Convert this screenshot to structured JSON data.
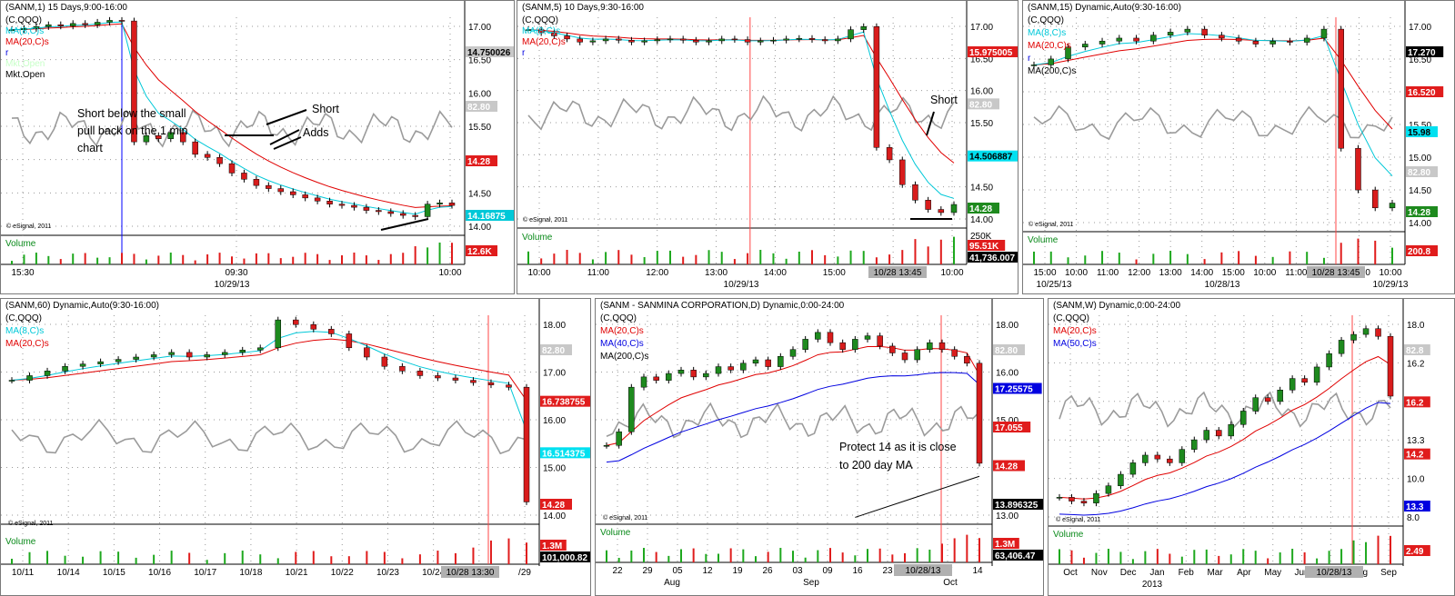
{
  "colors": {
    "ma8": "#00c8d8",
    "ma20": "#e00000",
    "ma40": "#0000e0",
    "ma50": "#0000e0",
    "ma200": "#000000",
    "qqq": "#9b9b9b",
    "up": "#1e8a1e",
    "down": "#d81c1c",
    "vol_up": "#1ea81e",
    "vol_down": "#e01c1c",
    "grid": "#999999",
    "vline": "#ff4444"
  },
  "copyright": "© eSignal, 2011",
  "panels": [
    {
      "id": "p1",
      "title": "(SANM,1) 15 Days,9:00-16:00",
      "legend": [
        {
          "text": "(C,QQQ)",
          "color": "#000000"
        },
        {
          "text": "MA(8,C)s",
          "color": "#00c8d8"
        },
        {
          "text": "MA(20,C)s",
          "color": "#e00000"
        },
        {
          "text": "r",
          "color": "#0000e0"
        },
        {
          "text": "Mkt.Open",
          "color": "#c8ffc8"
        },
        {
          "text": "Mkt.Open",
          "color": "#000000"
        }
      ],
      "y_ticks": [
        "17.00",
        "16.50",
        "16.00",
        "15.50",
        "15.00",
        "14.50",
        "14.00"
      ],
      "x_ticks": [
        "15:30",
        "09:30",
        "10:00"
      ],
      "x_date": "10/29/13",
      "price_tags": [
        {
          "text": "14.750026",
          "bg": "#c8c8c8",
          "fg": "#000000"
        },
        {
          "text": "82.80",
          "bg": "#c8c8c8",
          "fg": "#ffffff"
        },
        {
          "text": "14.28",
          "bg": "#e01c1c",
          "fg": "#ffffff"
        },
        {
          "text": "14.16875",
          "bg": "#00c8d8",
          "fg": "#ffffff"
        }
      ],
      "vol_label": "Volume",
      "vol_tag": "12.6K",
      "annotations": [
        "Short below the small",
        "pull back on the 1  min",
        "chart"
      ],
      "short_label": "Short",
      "adds_label": "Adds"
    },
    {
      "id": "p2",
      "title": "(SANM,5) 10 Days,9:30-16:00",
      "legend": [
        {
          "text": "(C,QQQ)",
          "color": "#000000"
        },
        {
          "text": "MA(8,C)s",
          "color": "#00c8d8"
        },
        {
          "text": "MA(20,C)s",
          "color": "#e00000"
        },
        {
          "text": "r",
          "color": "#0000e0"
        }
      ],
      "y_ticks": [
        "17.00",
        "16.50",
        "16.00",
        "15.50",
        "15.00",
        "14.50",
        "14.00"
      ],
      "x_ticks": [
        "10:00",
        "11:00",
        "12:00",
        "13:00",
        "14:00",
        "15:00",
        "09:00",
        "10:00"
      ],
      "x_marker": "10/28 13:45",
      "x_date": "10/29/13",
      "price_tags": [
        {
          "text": "15.975005",
          "bg": "#e01c1c",
          "fg": "#ffffff"
        },
        {
          "text": "82.80",
          "bg": "#c8c8c8",
          "fg": "#ffffff"
        },
        {
          "text": "14.506887",
          "bg": "#00e0f0",
          "fg": "#000000"
        },
        {
          "text": "14.28",
          "bg": "#1e8a1e",
          "fg": "#ffffff"
        }
      ],
      "vol_label": "Volume",
      "vol_ticks": [
        "250K"
      ],
      "vol_tags": [
        "95.51K",
        "41,736.007"
      ],
      "short_label": "Short"
    },
    {
      "id": "p3",
      "title": "(SANM,15) Dynamic,Auto(9:30-16:00)",
      "legend": [
        {
          "text": "(C,QQQ)",
          "color": "#000000"
        },
        {
          "text": "MA(8,C)s",
          "color": "#00c8d8"
        },
        {
          "text": "MA(20,C)s",
          "color": "#e00000"
        },
        {
          "text": "r",
          "color": "#0000e0"
        },
        {
          "text": "MA(200,C)s",
          "color": "#000000"
        }
      ],
      "y_ticks": [
        "17.00",
        "16.50",
        "16.00",
        "15.50",
        "15.00",
        "14.50",
        "14.00"
      ],
      "x_ticks": [
        "15:00",
        "10:00",
        "11:00",
        "12:00",
        "13:00",
        "14:00",
        "15:00",
        "10:00",
        "11:00",
        "12:00",
        "15:00",
        "10:00"
      ],
      "x_marker": "10/28 13:45",
      "x_dates": [
        "10/25/13",
        "10/28/13",
        "10/29/13"
      ],
      "price_tags": [
        {
          "text": "17.270",
          "bg": "#000000",
          "fg": "#ffffff"
        },
        {
          "text": "16.520",
          "bg": "#e01c1c",
          "fg": "#ffffff"
        },
        {
          "text": "15.98",
          "bg": "#00e0f0",
          "fg": "#000000"
        },
        {
          "text": "82.80",
          "bg": "#c8c8c8",
          "fg": "#ffffff"
        },
        {
          "text": "14.28",
          "bg": "#1e8a1e",
          "fg": "#ffffff"
        }
      ],
      "vol_label": "Volume",
      "vol_tag": "200.8"
    },
    {
      "id": "p4",
      "title": "(SANM,60) Dynamic,Auto(9:30-16:00)",
      "legend": [
        {
          "text": "(C,QQQ)",
          "color": "#000000"
        },
        {
          "text": "MA(8,C)s",
          "color": "#00c8d8"
        },
        {
          "text": "MA(20,C)s",
          "color": "#e00000"
        }
      ],
      "y_ticks": [
        "18.00",
        "17.00",
        "16.00",
        "15.00",
        "14.00"
      ],
      "x_ticks": [
        "10/11",
        "10/14",
        "10/15",
        "10/16",
        "10/17",
        "10/18",
        "10/21",
        "10/22",
        "10/23",
        "10/24",
        "10/25",
        "/29"
      ],
      "x_marker": "10/28 13:30",
      "price_tags": [
        {
          "text": "82.80",
          "bg": "#c8c8c8",
          "fg": "#ffffff"
        },
        {
          "text": "16.738755",
          "bg": "#e01c1c",
          "fg": "#ffffff"
        },
        {
          "text": "16.514375",
          "bg": "#00e0f0",
          "fg": "#ffffff"
        },
        {
          "text": "14.28",
          "bg": "#e01c1c",
          "fg": "#ffffff"
        }
      ],
      "vol_label": "Volume",
      "vol_tags": [
        "1.3M",
        "101,000.82"
      ]
    },
    {
      "id": "p5",
      "title": "(SANM - SANMINA CORPORATION,D) Dynamic,0:00-24:00",
      "legend": [
        {
          "text": "(C,QQQ)",
          "color": "#000000"
        },
        {
          "text": "MA(20,C)s",
          "color": "#e00000"
        },
        {
          "text": "MA(40,C)s",
          "color": "#0000e0"
        },
        {
          "text": "MA(200,C)s",
          "color": "#000000"
        }
      ],
      "y_ticks": [
        "18.00",
        "16.00",
        "15.00",
        "14.00",
        "13.00"
      ],
      "x_ticks": [
        "22",
        "29",
        "05",
        "12",
        "19",
        "26",
        "03",
        "09",
        "16",
        "23",
        "30",
        "07",
        "14"
      ],
      "x_months": [
        "Aug",
        "Sep",
        "Oct"
      ],
      "x_marker": "10/28/13",
      "price_tags": [
        {
          "text": "82.80",
          "bg": "#c8c8c8",
          "fg": "#ffffff"
        },
        {
          "text": "17.25575",
          "bg": "#0000e0",
          "fg": "#ffffff"
        },
        {
          "text": "17.055",
          "bg": "#e01c1c",
          "fg": "#ffffff"
        },
        {
          "text": "14.28",
          "bg": "#e01c1c",
          "fg": "#ffffff"
        },
        {
          "text": "13.896325",
          "bg": "#000000",
          "fg": "#ffffff"
        }
      ],
      "vol_label": "Volume",
      "vol_tags": [
        "1.3M",
        "63,406.47"
      ],
      "annotations": [
        "Protect 14 as it is close",
        "to 200 day MA"
      ]
    },
    {
      "id": "p6",
      "title": "(SANM,W) Dynamic,0:00-24:00",
      "legend": [
        {
          "text": "(C,QQQ)",
          "color": "#000000"
        },
        {
          "text": "MA(20,C)s",
          "color": "#e00000"
        },
        {
          "text": "MA(50,C)s",
          "color": "#0000e0"
        }
      ],
      "y_ticks": [
        "18.0",
        "16.2",
        "14.2",
        "13.3",
        "10.0",
        "8.0"
      ],
      "x_ticks": [
        "Oct",
        "Nov",
        "Dec",
        "Jan",
        "Feb",
        "Mar",
        "Apr",
        "May",
        "Jun",
        "Jul",
        "Aug",
        "Sep"
      ],
      "x_year": "2013",
      "x_marker": "10/28/13",
      "price_tags": [
        {
          "text": "82.8",
          "bg": "#c8c8c8",
          "fg": "#ffffff"
        },
        {
          "text": "16.2",
          "bg": "#e01c1c",
          "fg": "#ffffff"
        },
        {
          "text": "14.2",
          "bg": "#e01c1c",
          "fg": "#ffffff"
        },
        {
          "text": "13.3",
          "bg": "#0000e0",
          "fg": "#ffffff"
        }
      ],
      "vol_label": "Volume",
      "vol_tags": [
        "2.49"
      ]
    }
  ],
  "chart_data": [
    {
      "type": "candlestick",
      "panel": "p1",
      "title": "(SANM,1) 15 Days,9:00-16:00",
      "ylim": [
        13.8,
        17.3
      ],
      "close": [
        17.1,
        17.12,
        17.15,
        17.18,
        17.16,
        17.2,
        17.18,
        17.22,
        17.25,
        17.24,
        15.3,
        15.4,
        15.35,
        15.45,
        15.3,
        15.1,
        15.05,
        14.95,
        14.8,
        14.7,
        14.6,
        14.55,
        14.5,
        14.45,
        14.4,
        14.35,
        14.3,
        14.28,
        14.25,
        14.2,
        14.18,
        14.15,
        14.12,
        14.1,
        14.3,
        14.32,
        14.28
      ]
    },
    {
      "type": "candlestick",
      "panel": "p2",
      "title": "(SANM,5) 10 Days,9:30-16:00",
      "ylim": [
        13.9,
        17.3
      ],
      "close": [
        17.1,
        17.05,
        17.0,
        16.95,
        16.9,
        16.92,
        16.95,
        16.93,
        16.9,
        16.92,
        16.94,
        16.95,
        16.93,
        16.9,
        16.92,
        16.95,
        16.94,
        16.9,
        16.92,
        16.93,
        16.95,
        16.96,
        16.94,
        16.92,
        16.95,
        17.1,
        17.15,
        15.2,
        15.0,
        14.6,
        14.35,
        14.2,
        14.15,
        14.28
      ]
    },
    {
      "type": "candlestick",
      "panel": "p3",
      "title": "(SANM,15) Dynamic,Auto(9:30-16:00)",
      "ylim": [
        13.8,
        17.4
      ],
      "close": [
        16.6,
        16.7,
        16.9,
        16.95,
        17.0,
        17.05,
        17.0,
        17.1,
        17.15,
        17.2,
        17.1,
        17.05,
        17.0,
        16.95,
        17.0,
        16.98,
        17.05,
        17.2,
        15.2,
        14.5,
        14.2,
        14.28
      ]
    },
    {
      "type": "candlestick",
      "panel": "p4",
      "title": "(SANM,60) Dynamic,Auto(9:30-16:00)",
      "ylim": [
        13.8,
        18.3
      ],
      "close": [
        16.9,
        17.0,
        17.1,
        17.2,
        17.25,
        17.3,
        17.35,
        17.4,
        17.45,
        17.5,
        17.4,
        17.45,
        17.5,
        17.55,
        17.6,
        18.2,
        18.1,
        18.0,
        17.9,
        17.6,
        17.4,
        17.2,
        17.1,
        17.0,
        16.95,
        16.9,
        16.85,
        16.8,
        16.75,
        14.28
      ]
    },
    {
      "type": "candlestick",
      "panel": "p5",
      "title": "(SANM - SANMINA CORPORATION,D) Dynamic,0:00-24:00",
      "ylim": [
        12.5,
        18.6
      ],
      "close": [
        14.8,
        15.2,
        16.5,
        16.8,
        16.7,
        16.9,
        17.0,
        16.8,
        16.9,
        17.1,
        17.0,
        17.2,
        17.3,
        17.1,
        17.4,
        17.6,
        17.9,
        18.1,
        17.8,
        17.6,
        17.9,
        18.0,
        17.7,
        17.5,
        17.3,
        17.6,
        17.8,
        17.6,
        17.4,
        17.2,
        14.28
      ]
    },
    {
      "type": "candlestick",
      "panel": "p6",
      "title": "(SANM,W) Dynamic,0:00-24:00",
      "ylim": [
        7.5,
        18.5
      ],
      "close": [
        9.0,
        8.8,
        8.7,
        9.2,
        9.6,
        10.2,
        10.8,
        11.2,
        11.0,
        10.8,
        11.5,
        12.0,
        12.5,
        12.2,
        12.8,
        13.5,
        14.2,
        14.0,
        14.6,
        15.2,
        15.0,
        15.8,
        16.5,
        17.2,
        17.5,
        17.8,
        17.4,
        14.28
      ]
    }
  ]
}
